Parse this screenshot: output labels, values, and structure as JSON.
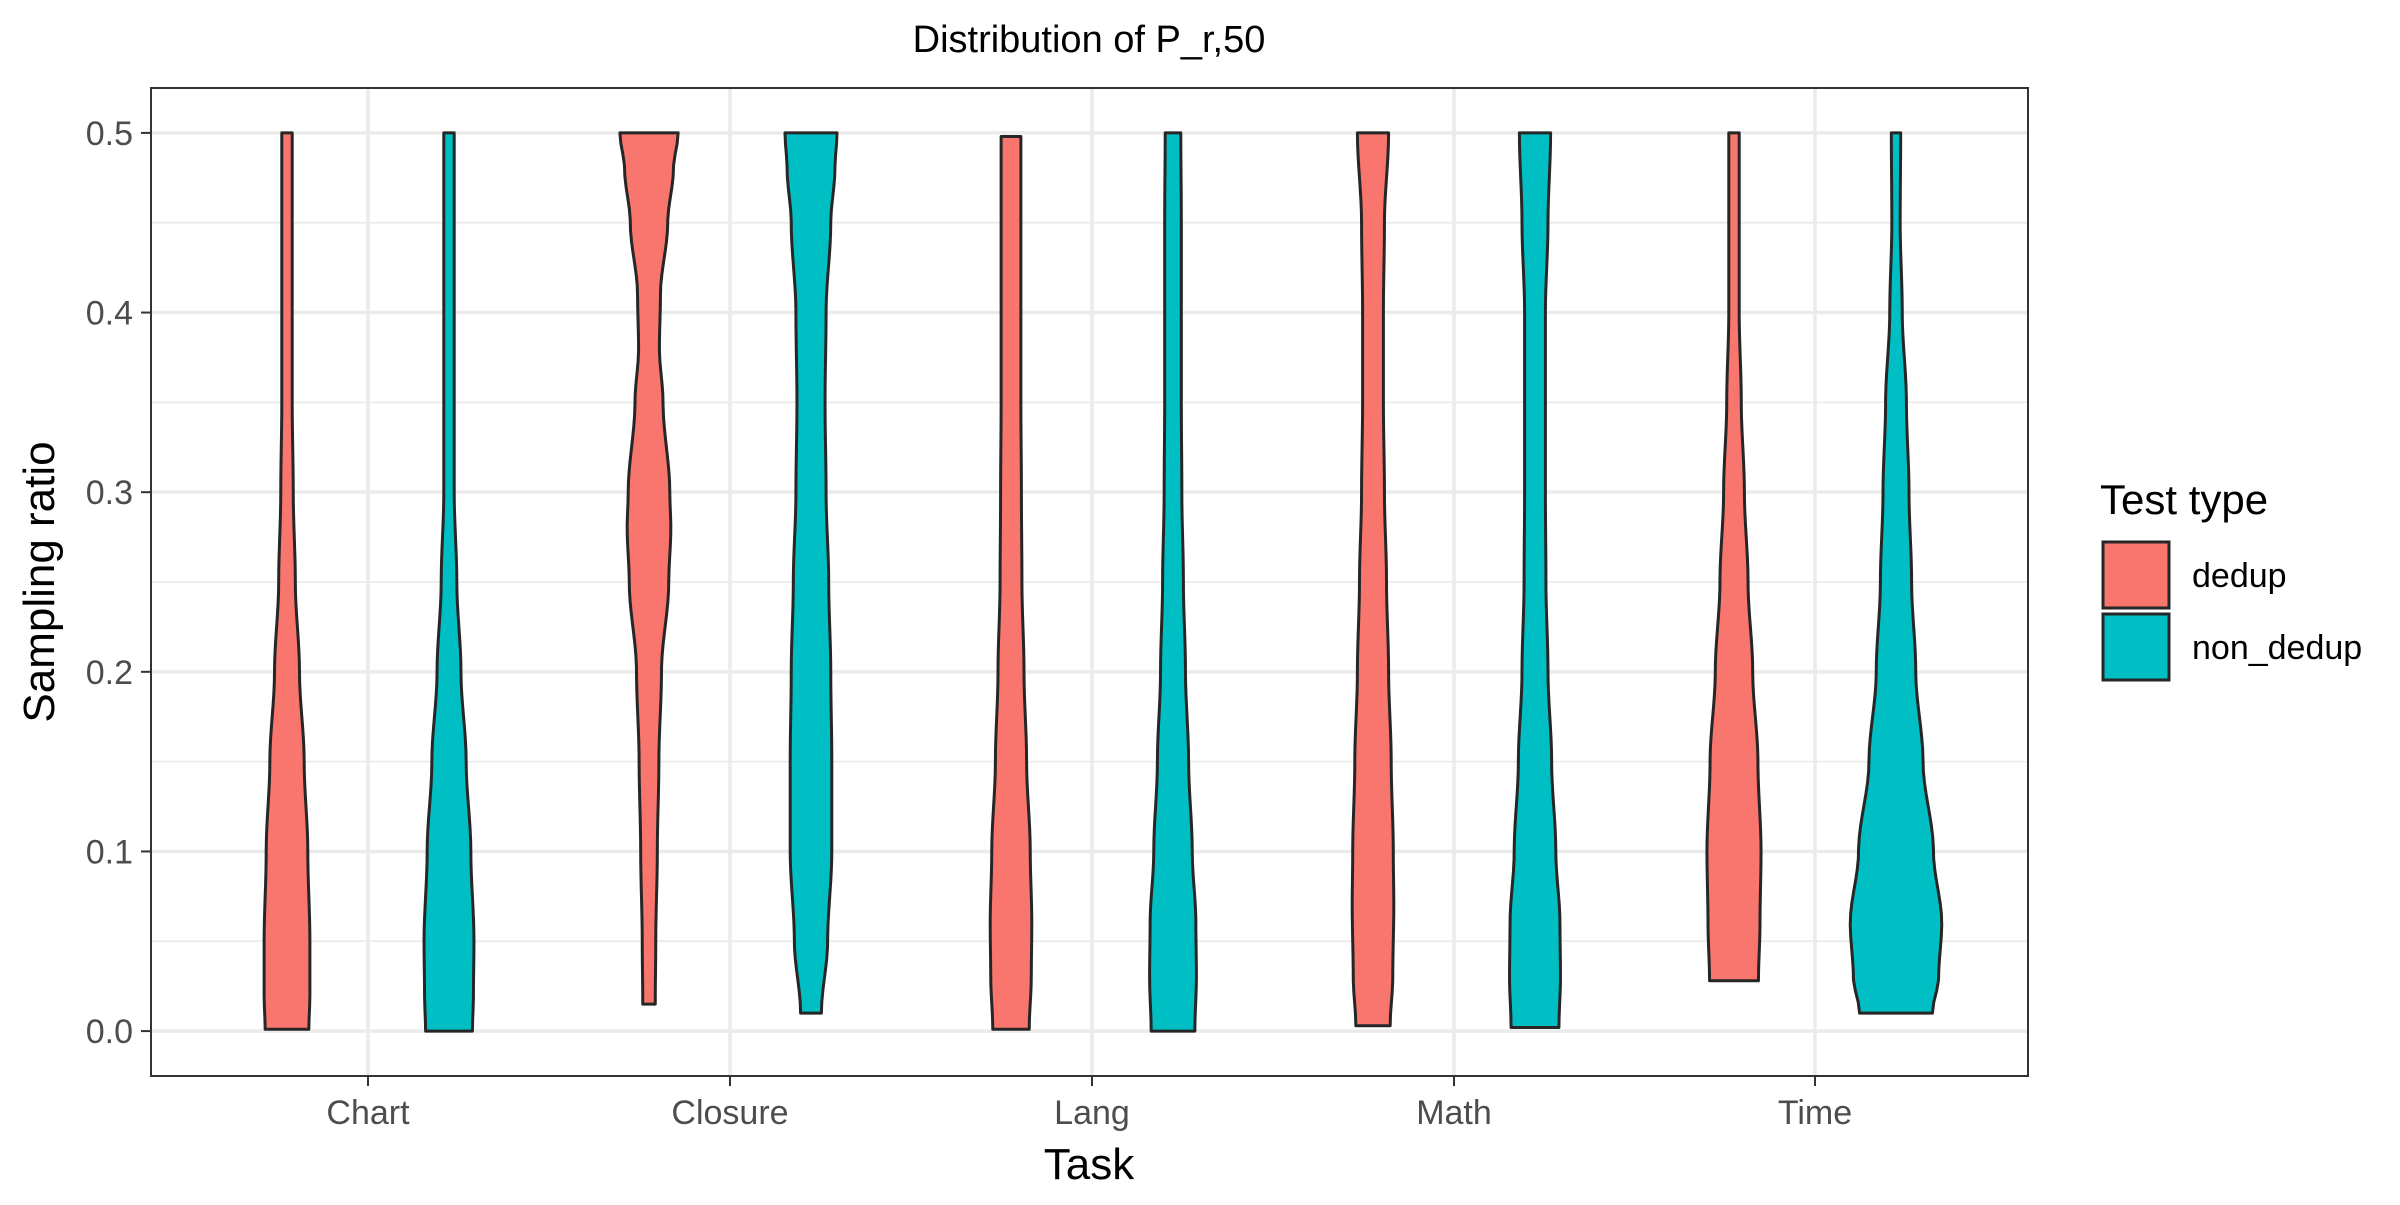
{
  "chart_data": {
    "type": "violin",
    "title": "Distribution of P_r,50",
    "xlabel": "Task",
    "ylabel": "Sampling ratio",
    "categories": [
      "Chart",
      "Closure",
      "Lang",
      "Math",
      "Time"
    ],
    "ylim": [
      -0.025,
      0.525
    ],
    "yticks": [
      0.0,
      0.1,
      0.2,
      0.3,
      0.4,
      0.5
    ],
    "ytick_labels": [
      "0.0",
      "0.1",
      "0.2",
      "0.3",
      "0.4",
      "0.5"
    ],
    "grid": true,
    "legend": {
      "title": "Test type",
      "position": "right",
      "entries": [
        {
          "name": "dedup",
          "color": "#F8766D"
        },
        {
          "name": "non_dedup",
          "color": "#00BFC4"
        }
      ]
    },
    "series": [
      {
        "name": "dedup",
        "color": "#F8766D",
        "violins": [
          {
            "category": "Chart",
            "min": 0.001,
            "max": 0.5,
            "profile": [
              [
                0.001,
                0.42
              ],
              [
                0.02,
                0.44
              ],
              [
                0.05,
                0.44
              ],
              [
                0.1,
                0.4
              ],
              [
                0.15,
                0.33
              ],
              [
                0.2,
                0.24
              ],
              [
                0.25,
                0.16
              ],
              [
                0.3,
                0.12
              ],
              [
                0.35,
                0.1
              ],
              [
                0.4,
                0.1
              ],
              [
                0.45,
                0.1
              ],
              [
                0.5,
                0.1
              ]
            ]
          },
          {
            "category": "Closure",
            "min": 0.015,
            "max": 0.5,
            "profile": [
              [
                0.015,
                0.12
              ],
              [
                0.05,
                0.13
              ],
              [
                0.1,
                0.16
              ],
              [
                0.15,
                0.19
              ],
              [
                0.2,
                0.24
              ],
              [
                0.25,
                0.38
              ],
              [
                0.28,
                0.42
              ],
              [
                0.3,
                0.4
              ],
              [
                0.35,
                0.27
              ],
              [
                0.38,
                0.2
              ],
              [
                0.41,
                0.22
              ],
              [
                0.45,
                0.36
              ],
              [
                0.48,
                0.47
              ],
              [
                0.5,
                0.56
              ]
            ]
          },
          {
            "category": "Lang",
            "min": 0.001,
            "max": 0.498,
            "profile": [
              [
                0.001,
                0.35
              ],
              [
                0.03,
                0.39
              ],
              [
                0.06,
                0.4
              ],
              [
                0.1,
                0.37
              ],
              [
                0.15,
                0.3
              ],
              [
                0.2,
                0.25
              ],
              [
                0.25,
                0.21
              ],
              [
                0.3,
                0.2
              ],
              [
                0.35,
                0.19
              ],
              [
                0.4,
                0.19
              ],
              [
                0.45,
                0.19
              ],
              [
                0.498,
                0.19
              ]
            ]
          },
          {
            "category": "Math",
            "min": 0.003,
            "max": 0.5,
            "profile": [
              [
                0.003,
                0.33
              ],
              [
                0.03,
                0.38
              ],
              [
                0.07,
                0.4
              ],
              [
                0.1,
                0.39
              ],
              [
                0.15,
                0.35
              ],
              [
                0.2,
                0.3
              ],
              [
                0.25,
                0.26
              ],
              [
                0.3,
                0.22
              ],
              [
                0.35,
                0.2
              ],
              [
                0.4,
                0.2
              ],
              [
                0.45,
                0.22
              ],
              [
                0.5,
                0.3
              ]
            ]
          },
          {
            "category": "Time",
            "min": 0.028,
            "max": 0.5,
            "profile": [
              [
                0.028,
                0.47
              ],
              [
                0.06,
                0.5
              ],
              [
                0.1,
                0.52
              ],
              [
                0.15,
                0.46
              ],
              [
                0.2,
                0.36
              ],
              [
                0.25,
                0.27
              ],
              [
                0.3,
                0.2
              ],
              [
                0.35,
                0.14
              ],
              [
                0.4,
                0.1
              ],
              [
                0.45,
                0.1
              ],
              [
                0.5,
                0.1
              ]
            ]
          }
        ]
      },
      {
        "name": "non_dedup",
        "color": "#00BFC4",
        "violins": [
          {
            "category": "Chart",
            "min": 0.0,
            "max": 0.5,
            "profile": [
              [
                0.0,
                0.45
              ],
              [
                0.02,
                0.47
              ],
              [
                0.05,
                0.48
              ],
              [
                0.1,
                0.42
              ],
              [
                0.15,
                0.33
              ],
              [
                0.2,
                0.23
              ],
              [
                0.25,
                0.15
              ],
              [
                0.3,
                0.1
              ],
              [
                0.35,
                0.1
              ],
              [
                0.4,
                0.1
              ],
              [
                0.45,
                0.1
              ],
              [
                0.5,
                0.1
              ]
            ]
          },
          {
            "category": "Closure",
            "min": 0.01,
            "max": 0.5,
            "profile": [
              [
                0.01,
                0.2
              ],
              [
                0.05,
                0.32
              ],
              [
                0.1,
                0.4
              ],
              [
                0.15,
                0.4
              ],
              [
                0.2,
                0.38
              ],
              [
                0.25,
                0.34
              ],
              [
                0.3,
                0.29
              ],
              [
                0.35,
                0.27
              ],
              [
                0.4,
                0.29
              ],
              [
                0.45,
                0.38
              ],
              [
                0.48,
                0.46
              ],
              [
                0.5,
                0.5
              ]
            ]
          },
          {
            "category": "Lang",
            "min": 0.0,
            "max": 0.5,
            "profile": [
              [
                0.0,
                0.42
              ],
              [
                0.03,
                0.45
              ],
              [
                0.06,
                0.44
              ],
              [
                0.1,
                0.37
              ],
              [
                0.15,
                0.3
              ],
              [
                0.2,
                0.24
              ],
              [
                0.25,
                0.2
              ],
              [
                0.3,
                0.17
              ],
              [
                0.35,
                0.16
              ],
              [
                0.4,
                0.16
              ],
              [
                0.45,
                0.16
              ],
              [
                0.5,
                0.15
              ]
            ]
          },
          {
            "category": "Math",
            "min": 0.002,
            "max": 0.5,
            "profile": [
              [
                0.002,
                0.46
              ],
              [
                0.03,
                0.49
              ],
              [
                0.06,
                0.48
              ],
              [
                0.1,
                0.4
              ],
              [
                0.15,
                0.32
              ],
              [
                0.2,
                0.25
              ],
              [
                0.25,
                0.21
              ],
              [
                0.3,
                0.2
              ],
              [
                0.35,
                0.2
              ],
              [
                0.4,
                0.2
              ],
              [
                0.45,
                0.25
              ],
              [
                0.5,
                0.3
              ]
            ]
          },
          {
            "category": "Time",
            "min": 0.01,
            "max": 0.5,
            "profile": [
              [
                0.01,
                0.7
              ],
              [
                0.03,
                0.82
              ],
              [
                0.06,
                0.88
              ],
              [
                0.1,
                0.72
              ],
              [
                0.15,
                0.52
              ],
              [
                0.2,
                0.38
              ],
              [
                0.25,
                0.3
              ],
              [
                0.3,
                0.25
              ],
              [
                0.35,
                0.2
              ],
              [
                0.4,
                0.12
              ],
              [
                0.45,
                0.08
              ],
              [
                0.5,
                0.09
              ]
            ]
          }
        ]
      }
    ]
  }
}
